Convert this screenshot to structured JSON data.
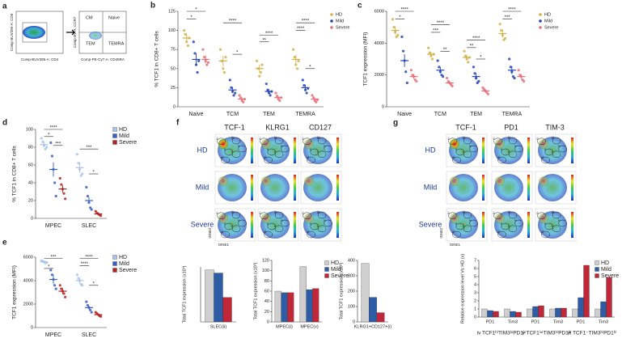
{
  "panel_letters": [
    "a",
    "b",
    "c",
    "d",
    "e",
    "f",
    "g"
  ],
  "flow": {
    "plot1_x": "Comp-BUV395-A: CD4",
    "plot1_y": "Comp-BUV395-A: CD8",
    "plot2_x": "Comp-PE-Cy7-A: CD45RA",
    "plot2_y": "Comp-BV-A: CCR7",
    "gates": [
      "CM",
      "Naive",
      "TEM",
      "TEMRA"
    ]
  },
  "tsne_f": {
    "columns": [
      "TCF-1",
      "KLRG1",
      "CD127"
    ],
    "rows": [
      "HD",
      "Mild",
      "Severe"
    ],
    "y_axis": "tSNE2",
    "x_axis": "tSNE1"
  },
  "tsne_g": {
    "columns": [
      "TCF-1",
      "PD1",
      "TIM-3"
    ],
    "rows": [
      "HD",
      "Mild",
      "Severe"
    ],
    "y_axis": "tSNE2",
    "x_axis": "tSNE1"
  },
  "clusters": [
    "i",
    "ii",
    "iii",
    "iv",
    "v",
    "vi"
  ],
  "chart_data": [
    {
      "type": "dotplot",
      "ylabel": "% TCF1 in CD8+ T cells",
      "categories": [
        "Naive",
        "TCM",
        "TEM",
        "TEMRA"
      ],
      "ylim": [
        0,
        125
      ],
      "yticks": [
        0,
        25,
        50,
        75,
        100,
        125
      ],
      "series": [
        {
          "name": "HD",
          "color": "#d4b24c",
          "values": [
            90,
            60,
            50,
            62
          ],
          "errors": [
            5,
            7,
            5,
            6
          ],
          "points": [
            [
              100,
              95,
              85,
              80,
              90
            ],
            [
              75,
              60,
              50,
              45,
              65
            ],
            [
              60,
              50,
              40,
              45,
              55
            ],
            [
              75,
              65,
              55,
              50,
              60
            ]
          ]
        },
        {
          "name": "Mild",
          "color": "#2545b5",
          "values": [
            62,
            22,
            20,
            25
          ],
          "errors": [
            8,
            4,
            3,
            4
          ],
          "points": [
            [
              85,
              70,
              55,
              45,
              60
            ],
            [
              35,
              25,
              20,
              15,
              18
            ],
            [
              30,
              22,
              18,
              15,
              20
            ],
            [
              35,
              28,
              22,
              18,
              24
            ]
          ]
        },
        {
          "name": "Severe",
          "color": "#e8707a",
          "values": [
            62,
            10,
            12,
            10
          ],
          "errors": [
            5,
            2,
            2,
            2
          ],
          "points": [
            [
              75,
              65,
              60,
              55,
              58
            ],
            [
              15,
              12,
              8,
              6,
              10
            ],
            [
              18,
              14,
              10,
              8,
              12
            ],
            [
              15,
              12,
              8,
              6,
              9
            ]
          ]
        }
      ],
      "annotations": [
        "*",
        "*",
        "****",
        "*",
        "****",
        "**",
        "****",
        "****",
        "*"
      ]
    },
    {
      "type": "dotplot",
      "ylabel": "TCF1 expression (MFI)",
      "categories": [
        "Naive",
        "TCM",
        "TEM",
        "TEMRA"
      ],
      "ylim": [
        0,
        6000
      ],
      "yticks": [
        0,
        2000,
        4000,
        6000
      ],
      "series": [
        {
          "name": "HD",
          "color": "#d4b24c",
          "values": [
            4800,
            3300,
            3100,
            4600
          ],
          "errors": [
            250,
            150,
            150,
            250
          ],
          "points": [
            [
              5500,
              5000,
              4700,
              4400,
              4500
            ],
            [
              3700,
              3400,
              3200,
              3000,
              3300
            ],
            [
              3500,
              3200,
              3000,
              2800,
              3100
            ],
            [
              5200,
              4800,
              4500,
              4200,
              4300
            ]
          ]
        },
        {
          "name": "Mild",
          "color": "#2545b5",
          "values": [
            2900,
            2300,
            1900,
            2300
          ],
          "errors": [
            400,
            200,
            200,
            250
          ],
          "points": [
            [
              4400,
              3500,
              2900,
              2200,
              1500
            ],
            [
              2900,
              2500,
              2200,
              2000,
              1900
            ],
            [
              2500,
              2100,
              1800,
              1500,
              1600
            ],
            [
              3000,
              2500,
              2200,
              1900,
              1800
            ]
          ]
        },
        {
          "name": "Severe",
          "color": "#e8707a",
          "values": [
            1900,
            1500,
            1000,
            1900
          ],
          "errors": [
            150,
            80,
            80,
            150
          ],
          "points": [
            [
              2300,
              2000,
              1900,
              1700,
              1600
            ],
            [
              1800,
              1600,
              1500,
              1400,
              1300
            ],
            [
              1200,
              1100,
              1000,
              900,
              800
            ],
            [
              2300,
              2000,
              1900,
              1700,
              1600
            ]
          ]
        }
      ],
      "annotations": [
        "****",
        "*",
        "****",
        "***",
        "**",
        "****",
        "**",
        "*",
        "****",
        "***"
      ]
    },
    {
      "type": "dotplot",
      "ylabel": "% TCF1 in CD8+ T cells",
      "categories": [
        "MPEC",
        "SLEC"
      ],
      "ylim": [
        0,
        100
      ],
      "yticks": [
        0,
        20,
        40,
        60,
        80,
        100
      ],
      "series": [
        {
          "name": "HD",
          "color": "#a9c4e8",
          "values": [
            83,
            57
          ],
          "errors": [
            3,
            6
          ],
          "points": [
            [
              90,
              86,
              82,
              78,
              80
            ],
            [
              72,
              62,
              55,
              48,
              50
            ]
          ]
        },
        {
          "name": "Mild",
          "color": "#3a5fc4",
          "values": [
            55,
            20
          ],
          "errors": [
            8,
            4
          ],
          "points": [
            [
              85,
              70,
              55,
              40,
              25
            ],
            [
              35,
              25,
              18,
              12,
              10
            ]
          ]
        },
        {
          "name": "Severe",
          "color": "#b22222",
          "values": [
            33,
            5
          ],
          "errors": [
            4,
            1
          ],
          "points": [
            [
              45,
              38,
              33,
              28,
              22
            ],
            [
              8,
              6,
              5,
              4,
              3
            ]
          ]
        }
      ],
      "annotations": [
        "****",
        "*",
        "***",
        "***",
        "*"
      ]
    },
    {
      "type": "dotplot",
      "ylabel": "TCF1 expression (MFI)",
      "categories": [
        "MPEC",
        "SLEC"
      ],
      "ylim": [
        0,
        6000
      ],
      "yticks": [
        0,
        2000,
        4000,
        6000
      ],
      "series": [
        {
          "name": "HD",
          "color": "#a9c4e8",
          "values": [
            5600,
            4000
          ],
          "errors": [
            80,
            250
          ],
          "points": [
            [
              5700,
              5650,
              5600,
              5500,
              5550
            ],
            [
              4500,
              4200,
              4000,
              3700,
              3600
            ]
          ]
        },
        {
          "name": "Mild",
          "color": "#3a5fc4",
          "values": [
            4100,
            1700
          ],
          "errors": [
            400,
            150
          ],
          "points": [
            [
              4900,
              4500,
              4100,
              3600,
              3300
            ],
            [
              2200,
              1900,
              1700,
              1500,
              1300
            ]
          ]
        },
        {
          "name": "Severe",
          "color": "#b22222",
          "values": [
            3100,
            1100
          ],
          "errors": [
            250,
            60
          ],
          "points": [
            [
              3600,
              3300,
              3100,
              2900,
              2600
            ],
            [
              1300,
              1200,
              1100,
              1000,
              950
            ]
          ]
        }
      ],
      "annotations": [
        "***",
        "*",
        "****",
        "****",
        "*"
      ]
    },
    {
      "type": "bar",
      "ylabel": "Total TCF1 expression (x10³)",
      "categories": [
        "SLEC(ii)"
      ],
      "ylim": [
        0,
        90
      ],
      "series": [
        {
          "name": "HD",
          "color": "#cfcfcf",
          "values": [
            85
          ]
        },
        {
          "name": "Mild",
          "color": "#2e5da8",
          "values": [
            80
          ]
        },
        {
          "name": "Severe",
          "color": "#c0283a",
          "values": [
            40
          ]
        }
      ]
    },
    {
      "type": "bar",
      "ylabel": "Total TCF1 expression (x10³)",
      "categories": [
        "MPEC(i)",
        "MPEC(v)"
      ],
      "ylim": [
        0,
        120
      ],
      "yticks": [
        0,
        20,
        40,
        60,
        80,
        100,
        120
      ],
      "series": [
        {
          "name": "HD",
          "color": "#cfcfcf",
          "values": [
            60,
            108
          ]
        },
        {
          "name": "Mild",
          "color": "#2e5da8",
          "values": [
            57,
            63
          ]
        },
        {
          "name": "Severe",
          "color": "#c0283a",
          "values": [
            57,
            65
          ]
        }
      ]
    },
    {
      "type": "bar",
      "ylabel": "Total TCF1 expression (x10³)",
      "categories": [
        "KLRG1+CD127+(i)"
      ],
      "ylim": [
        0,
        400
      ],
      "yticks": [
        0,
        100,
        200,
        300,
        400
      ],
      "series": [
        {
          "name": "HD",
          "color": "#cfcfcf",
          "values": [
            380
          ]
        },
        {
          "name": "Mild",
          "color": "#2e5da8",
          "values": [
            160
          ]
        },
        {
          "name": "Severe",
          "color": "#c0283a",
          "values": [
            60
          ]
        }
      ]
    },
    {
      "type": "bar",
      "ylabel": "Relative expression level Vs HD (x)",
      "categories": [
        "PD1",
        "Tim3",
        "PD1",
        "Tim3",
        "PD1",
        "Tim3"
      ],
      "ylim": [
        0,
        7
      ],
      "yticks": [
        0,
        1,
        2,
        3,
        4,
        5,
        6,
        7
      ],
      "groups": [
        "iv  TCF1ʰⁱTIM3ˡᵒPD1ˡᵒ",
        "v  TCF1ⁱⁿᵗTIM3ʰⁱPD1ʰⁱ",
        "vi  TCF1⁻TIM3ʰⁱPD1ʰⁱ"
      ],
      "series": [
        {
          "name": "HD",
          "color": "#cfcfcf",
          "values": [
            1,
            1,
            1,
            1,
            1,
            1
          ]
        },
        {
          "name": "Mild",
          "color": "#2e5da8",
          "values": [
            0.8,
            0.7,
            1.3,
            1.1,
            2.4,
            1.9
          ]
        },
        {
          "name": "Severe",
          "color": "#c0283a",
          "values": [
            0.7,
            0.6,
            1.4,
            1.1,
            6.4,
            4.9
          ]
        }
      ]
    }
  ]
}
